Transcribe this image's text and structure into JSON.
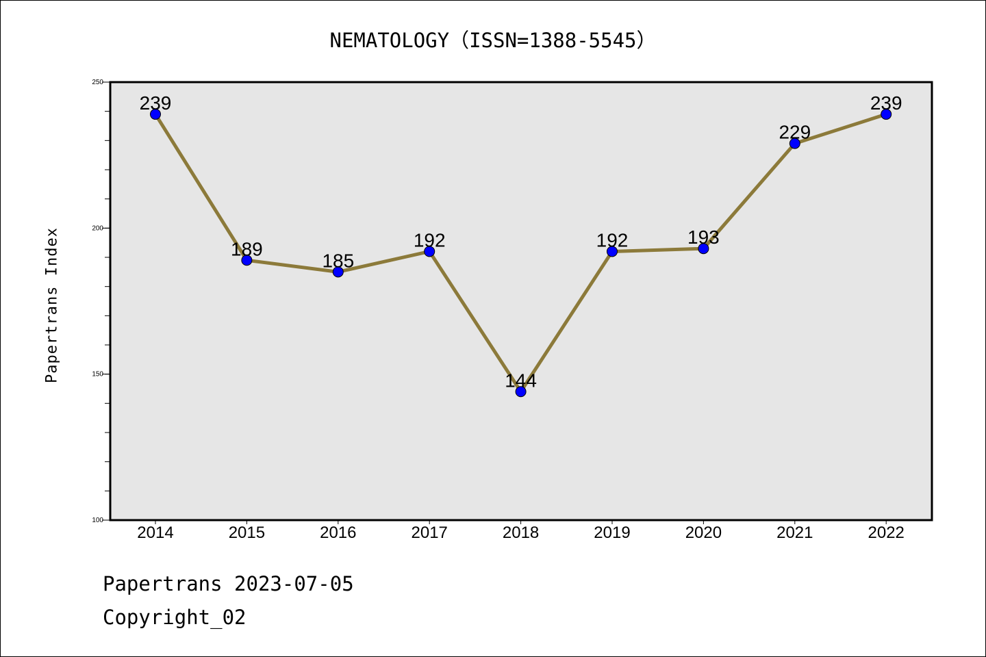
{
  "chart_data": {
    "type": "line",
    "title": "NEMATOLOGY（ISSN=1388-5545）",
    "ylabel": "Papertrans Index",
    "xlabel": "",
    "categories": [
      "2014",
      "2015",
      "2016",
      "2017",
      "2018",
      "2019",
      "2020",
      "2021",
      "2022"
    ],
    "series": [
      {
        "values": [
          239,
          189,
          185,
          192,
          144,
          192,
          193,
          229,
          239
        ]
      }
    ],
    "data_labels": [
      "239",
      "189",
      "185",
      "192",
      "144",
      "192",
      "193",
      "229",
      "239"
    ],
    "ylim": [
      100,
      250
    ],
    "yticks": [
      100,
      150,
      200,
      250
    ],
    "ytick_labels": [
      "100",
      "150",
      "200",
      "250"
    ],
    "grid": false,
    "line_color": "#8c7a3a",
    "marker_color": "#0000ff",
    "plot_background": "#e6e6e6"
  },
  "footer": {
    "date_text": "Papertrans 2023-07-05",
    "copyright_text": "Copyright_02"
  }
}
